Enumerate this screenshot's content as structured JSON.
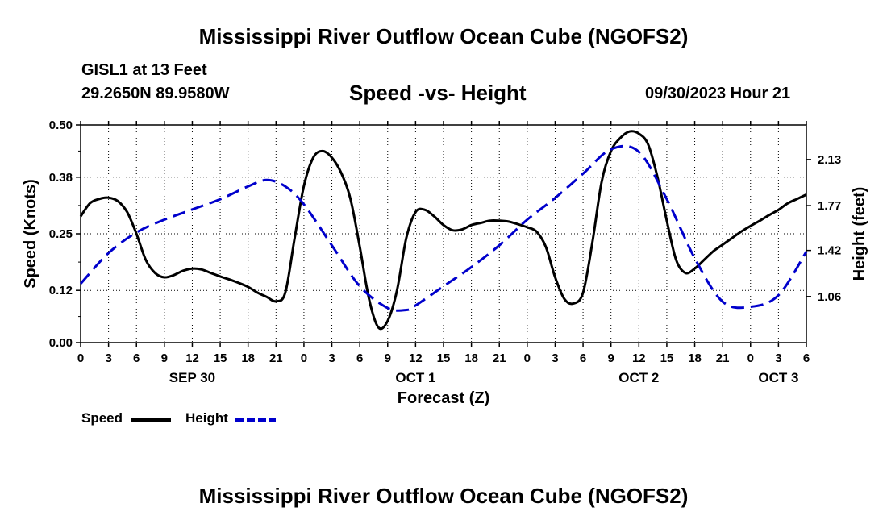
{
  "header": {
    "title": "Mississippi River Outflow Ocean Cube (NGOFS2)",
    "station": "GISL1 at 13 Feet",
    "coords": "29.2650N  89.9580W",
    "subtitle": "Speed -vs- Height",
    "datetime": "09/30/2023 Hour 21"
  },
  "footer": {
    "title": "Mississippi River Outflow Ocean Cube (NGOFS2)"
  },
  "legend": {
    "speed_label": "Speed",
    "height_label": "Height"
  },
  "chart_data": {
    "type": "line",
    "title": "Speed -vs- Height",
    "xlabel": "Forecast (Z)",
    "ylabel": "Speed (Knots)",
    "y2label": "Height (feet)",
    "xlim": [
      0,
      78
    ],
    "ylim": [
      0,
      0.5
    ],
    "y2lim": [
      0.7,
      2.4
    ],
    "y_ticks": [
      "0.00",
      "0.12",
      "0.25",
      "0.38",
      "0.50"
    ],
    "y2_ticks": [
      "1.06",
      "1.42",
      "1.77",
      "2.13"
    ],
    "x_tick_labels": [
      "0",
      "3",
      "6",
      "9",
      "12",
      "15",
      "18",
      "21",
      "0",
      "3",
      "6",
      "9",
      "12",
      "15",
      "18",
      "21",
      "0",
      "3",
      "6",
      "9",
      "12",
      "15",
      "18",
      "21",
      "0",
      "3",
      "6"
    ],
    "date_labels": [
      {
        "label": "SEP 30",
        "hour": 12
      },
      {
        "label": "OCT 1",
        "hour": 36
      },
      {
        "label": "OCT 2",
        "hour": 60
      },
      {
        "label": "OCT 3",
        "hour": 75
      }
    ],
    "colors": {
      "speed": "#000000",
      "height": "#0000cc"
    },
    "series": [
      {
        "name": "Speed",
        "axis": "left",
        "x": [
          0,
          1,
          2,
          3,
          4,
          5,
          6,
          7,
          8,
          9,
          10,
          11,
          12,
          13,
          14,
          15,
          16,
          17,
          18,
          19,
          20,
          21,
          22,
          23,
          24,
          25,
          26,
          27,
          28,
          29,
          30,
          31,
          32,
          33,
          34,
          35,
          36,
          37,
          38,
          39,
          40,
          41,
          42,
          43,
          44,
          45,
          46,
          47,
          48,
          49,
          50,
          51,
          52,
          53,
          54,
          55,
          56,
          57,
          58,
          59,
          60,
          61,
          62,
          63,
          64,
          65,
          66,
          67,
          68,
          69,
          70,
          71,
          72,
          73,
          74,
          75,
          76,
          77,
          78
        ],
        "values": [
          0.29,
          0.32,
          0.33,
          0.333,
          0.325,
          0.3,
          0.25,
          0.19,
          0.16,
          0.15,
          0.155,
          0.165,
          0.17,
          0.168,
          0.16,
          0.152,
          0.145,
          0.137,
          0.128,
          0.115,
          0.105,
          0.095,
          0.115,
          0.24,
          0.36,
          0.425,
          0.44,
          0.425,
          0.39,
          0.33,
          0.22,
          0.1,
          0.035,
          0.05,
          0.12,
          0.24,
          0.3,
          0.305,
          0.29,
          0.27,
          0.258,
          0.26,
          0.27,
          0.275,
          0.28,
          0.28,
          0.278,
          0.272,
          0.265,
          0.255,
          0.22,
          0.15,
          0.1,
          0.09,
          0.115,
          0.23,
          0.37,
          0.44,
          0.47,
          0.485,
          0.48,
          0.455,
          0.38,
          0.28,
          0.19,
          0.16,
          0.17,
          0.19,
          0.21,
          0.225,
          0.24,
          0.255,
          0.268,
          0.28,
          0.293,
          0.305,
          0.32,
          0.33,
          0.34
        ]
      },
      {
        "name": "Height",
        "axis": "right",
        "x": [
          0,
          3,
          6,
          9,
          12,
          15,
          18,
          20,
          22,
          24,
          27,
          30,
          33,
          35,
          36,
          39,
          42,
          45,
          48,
          51,
          54,
          57,
          60,
          63,
          66,
          69,
          72,
          75,
          78
        ],
        "values": [
          1.16,
          1.4,
          1.56,
          1.66,
          1.74,
          1.82,
          1.92,
          1.97,
          1.92,
          1.78,
          1.46,
          1.14,
          0.97,
          0.955,
          0.99,
          1.14,
          1.29,
          1.46,
          1.66,
          1.83,
          2.02,
          2.21,
          2.19,
          1.82,
          1.36,
          1.02,
          0.98,
          1.07,
          1.41
        ]
      }
    ]
  }
}
